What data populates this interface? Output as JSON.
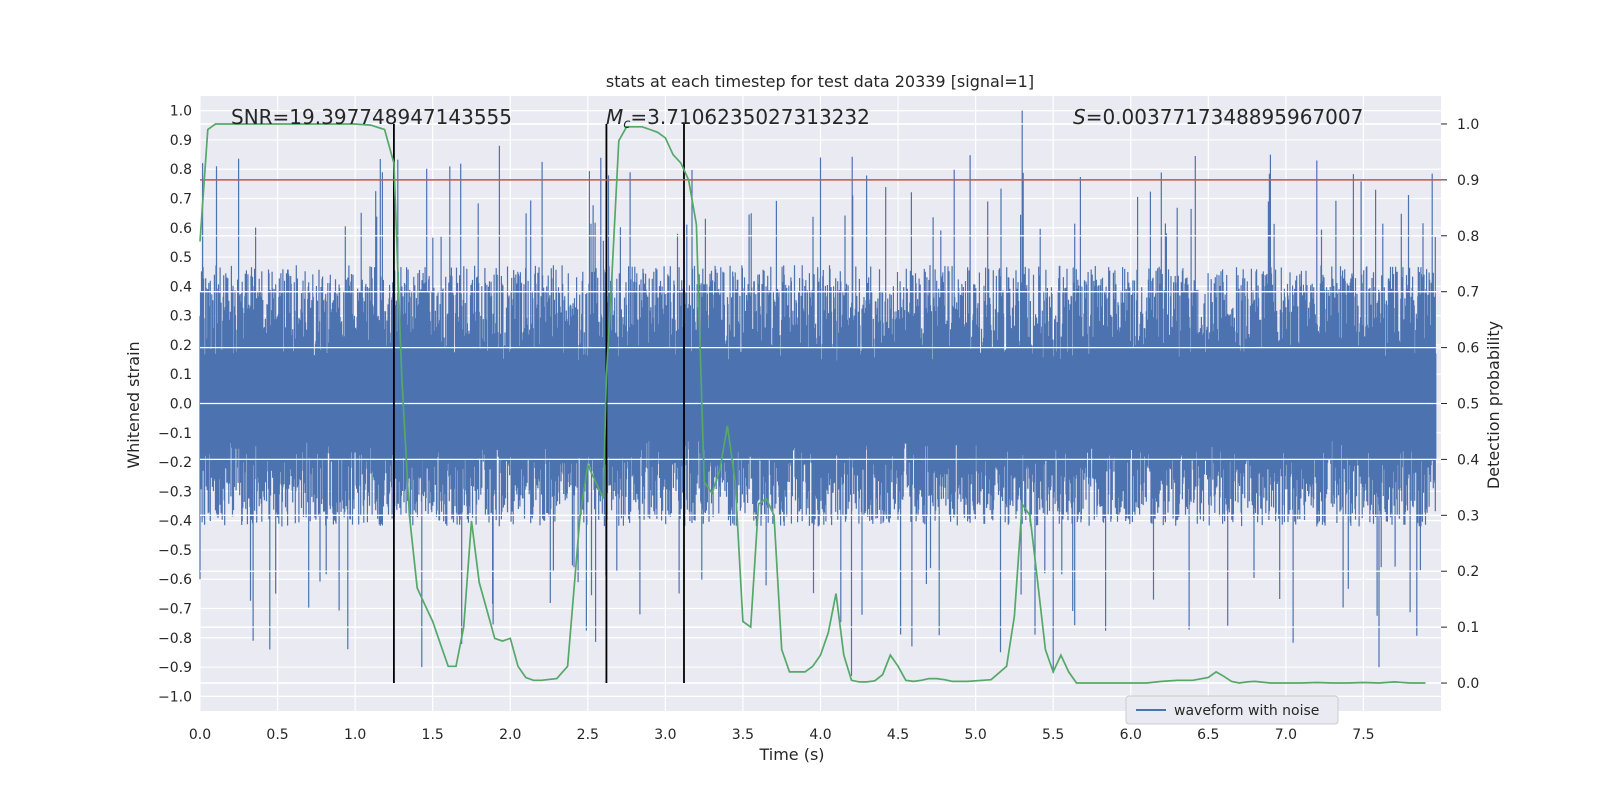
{
  "chart_data": {
    "type": "line",
    "title": "stats at each timestep for test data 20339 [signal=1]",
    "xlabel": "Time (s)",
    "ylabel_left": "Whitened strain",
    "ylabel_right": "Detection probability",
    "xlim": [
      0.0,
      8.0
    ],
    "ylim_left": [
      -1.05,
      1.05
    ],
    "ylim_right": [
      -0.05,
      1.05
    ],
    "x_ticks": [
      "0.0",
      "0.5",
      "1.0",
      "1.5",
      "2.0",
      "2.5",
      "3.0",
      "3.5",
      "4.0",
      "4.5",
      "5.0",
      "5.5",
      "6.0",
      "6.5",
      "7.0",
      "7.5"
    ],
    "y_ticks_left": [
      "1.0",
      "0.9",
      "0.8",
      "0.7",
      "0.6",
      "0.5",
      "0.4",
      "0.3",
      "0.2",
      "0.1",
      "0.0",
      "−0.1",
      "−0.2",
      "−0.3",
      "−0.4",
      "−0.5",
      "−0.6",
      "−0.7",
      "−0.8",
      "−0.9",
      "−1.0"
    ],
    "y_ticks_right": [
      "1.0",
      "0.9",
      "0.8",
      "0.7",
      "0.6",
      "0.5",
      "0.4",
      "0.3",
      "0.2",
      "0.1",
      "0.0"
    ],
    "grid": true,
    "annotations": {
      "snr": "SNR=19.397748947143555",
      "mc_symbol": "M",
      "mc_sub": "c",
      "mc_value": "=3.7106235027313232",
      "s_symbol": "S",
      "s_value": "=0.003771734889596700​7"
    },
    "threshold_right": 0.9,
    "vertical_lines_x": [
      1.25,
      2.62,
      3.12
    ],
    "legend": {
      "label": "waveform with noise",
      "placement": "lower-right"
    },
    "waveform_envelope": {
      "typical_range": [
        -0.4,
        0.45
      ],
      "peak_max": 1.0,
      "peak_min": -0.93,
      "series_color": "#4c72b0"
    },
    "detection_probability": {
      "x": [
        0.0,
        0.05,
        0.1,
        0.15,
        0.2,
        0.3,
        0.4,
        0.5,
        0.6,
        0.7,
        0.8,
        0.9,
        1.0,
        1.1,
        1.19,
        1.25,
        1.3,
        1.35,
        1.4,
        1.45,
        1.5,
        1.55,
        1.6,
        1.65,
        1.7,
        1.75,
        1.8,
        1.85,
        1.9,
        1.95,
        2.0,
        2.05,
        2.1,
        2.15,
        2.2,
        2.3,
        2.37,
        2.45,
        2.5,
        2.55,
        2.6,
        2.62,
        2.65,
        2.7,
        2.75,
        2.8,
        2.85,
        2.9,
        2.95,
        3.0,
        3.05,
        3.1,
        3.15,
        3.2,
        3.25,
        3.3,
        3.35,
        3.4,
        3.45,
        3.5,
        3.55,
        3.6,
        3.65,
        3.7,
        3.75,
        3.8,
        3.85,
        3.9,
        3.95,
        4.0,
        4.05,
        4.1,
        4.15,
        4.2,
        4.25,
        4.3,
        4.35,
        4.4,
        4.45,
        4.5,
        4.55,
        4.6,
        4.65,
        4.7,
        4.75,
        4.8,
        4.85,
        4.9,
        4.95,
        5.0,
        5.1,
        5.2,
        5.25,
        5.3,
        5.35,
        5.4,
        5.45,
        5.5,
        5.55,
        5.6,
        5.65,
        5.7,
        5.75,
        5.8,
        5.9,
        6.0,
        6.1,
        6.2,
        6.3,
        6.4,
        6.5,
        6.55,
        6.6,
        6.65,
        6.7,
        6.75,
        6.8,
        6.9,
        7.0,
        7.1,
        7.2,
        7.3,
        7.4,
        7.5,
        7.6,
        7.7,
        7.8,
        7.9
      ],
      "y": [
        0.79,
        0.99,
        1.0,
        1.0,
        1.0,
        1.0,
        1.0,
        1.0,
        1.0,
        1.0,
        1.0,
        1.0,
        1.0,
        0.998,
        0.99,
        0.93,
        0.55,
        0.3,
        0.17,
        0.14,
        0.11,
        0.07,
        0.03,
        0.03,
        0.1,
        0.29,
        0.18,
        0.13,
        0.08,
        0.075,
        0.08,
        0.03,
        0.01,
        0.005,
        0.005,
        0.008,
        0.03,
        0.3,
        0.39,
        0.36,
        0.33,
        0.55,
        0.7,
        0.97,
        0.995,
        0.995,
        0.995,
        0.99,
        0.985,
        0.975,
        0.945,
        0.93,
        0.9,
        0.82,
        0.36,
        0.34,
        0.38,
        0.46,
        0.36,
        0.11,
        0.1,
        0.32,
        0.33,
        0.3,
        0.06,
        0.02,
        0.02,
        0.02,
        0.03,
        0.05,
        0.09,
        0.16,
        0.05,
        0.005,
        0.002,
        0.002,
        0.004,
        0.015,
        0.05,
        0.03,
        0.005,
        0.003,
        0.005,
        0.008,
        0.008,
        0.006,
        0.003,
        0.003,
        0.003,
        0.004,
        0.006,
        0.03,
        0.12,
        0.32,
        0.3,
        0.18,
        0.06,
        0.02,
        0.05,
        0.02,
        0.0,
        0.0,
        0.0,
        0.0,
        0.0,
        0.0,
        0.0,
        0.003,
        0.005,
        0.005,
        0.01,
        0.02,
        0.012,
        0.003,
        0.0,
        0.002,
        0.003,
        0.0,
        0.0,
        0.0,
        0.001,
        0.0,
        0.0,
        0.001,
        0.0,
        0.002,
        0.0,
        0.0
      ],
      "color": "#55a868"
    },
    "threshold_color": "#c44e52"
  }
}
